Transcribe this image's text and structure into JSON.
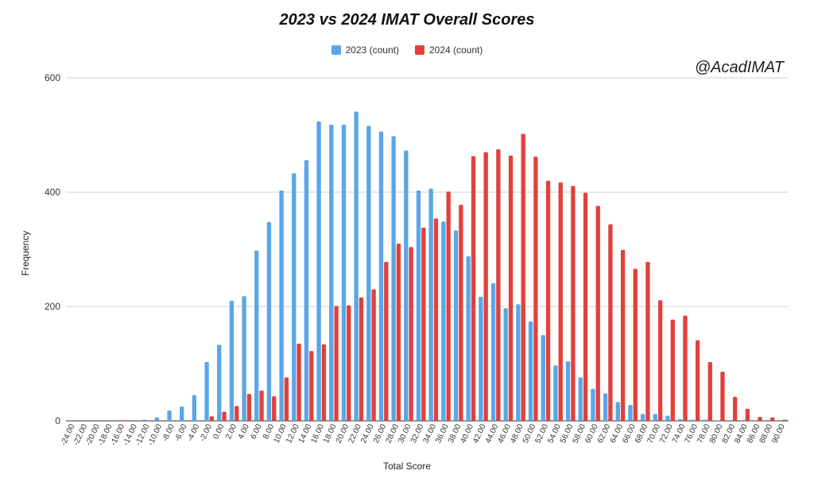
{
  "chart_data": {
    "type": "bar",
    "title": "2023 vs 2024 IMAT Overall Scores",
    "xlabel": "Total Score",
    "ylabel": "Frequency",
    "ylim": [
      0,
      600
    ],
    "yticks": [
      0,
      200,
      400,
      600
    ],
    "grid": true,
    "legend_position": "top",
    "watermark": "@AcadIMAT",
    "categories": [
      "-24.00",
      "-22.00",
      "-20.00",
      "-18.00",
      "-16.00",
      "-14.00",
      "-12.00",
      "-10.00",
      "-8.00",
      "-6.00",
      "-4.00",
      "-2.00",
      "0.00",
      "2.00",
      "4.00",
      "6.00",
      "8.00",
      "10.00",
      "12.00",
      "14.00",
      "16.00",
      "18.00",
      "20.00",
      "22.00",
      "24.00",
      "26.00",
      "28.00",
      "30.00",
      "32.00",
      "34.00",
      "36.00",
      "38.00",
      "40.00",
      "42.00",
      "44.00",
      "46.00",
      "48.00",
      "50.00",
      "52.00",
      "54.00",
      "56.00",
      "58.00",
      "60.00",
      "62.00",
      "64.00",
      "66.00",
      "68.00",
      "70.00",
      "72.00",
      "74.00",
      "76.00",
      "78.00",
      "80.00",
      "82.00",
      "84.00",
      "86.00",
      "88.00",
      "90.00"
    ],
    "series": [
      {
        "name": "2023 (count)",
        "color": "#5aa6e6",
        "values": [
          0,
          0,
          0,
          0,
          0,
          0,
          2,
          6,
          18,
          25,
          45,
          103,
          133,
          210,
          218,
          298,
          348,
          403,
          433,
          456,
          524,
          518,
          518,
          541,
          516,
          506,
          498,
          473,
          403,
          406,
          349,
          333,
          288,
          217,
          241,
          197,
          204,
          174,
          150,
          97,
          104,
          76,
          56,
          48,
          33,
          28,
          12,
          12,
          9,
          3,
          2,
          2,
          1,
          0,
          0,
          0,
          0,
          0
        ]
      },
      {
        "name": "2024 (count)",
        "color": "#e2413b",
        "values": [
          0,
          0,
          0,
          0,
          1,
          0,
          0,
          0,
          1,
          0,
          0,
          8,
          16,
          26,
          47,
          53,
          43,
          76,
          135,
          122,
          134,
          201,
          202,
          216,
          230,
          278,
          310,
          304,
          338,
          354,
          401,
          378,
          463,
          470,
          475,
          464,
          502,
          462,
          420,
          417,
          411,
          399,
          376,
          344,
          299,
          266,
          278,
          211,
          177,
          184,
          141,
          103,
          86,
          42,
          21,
          7,
          6,
          2
        ]
      }
    ]
  }
}
